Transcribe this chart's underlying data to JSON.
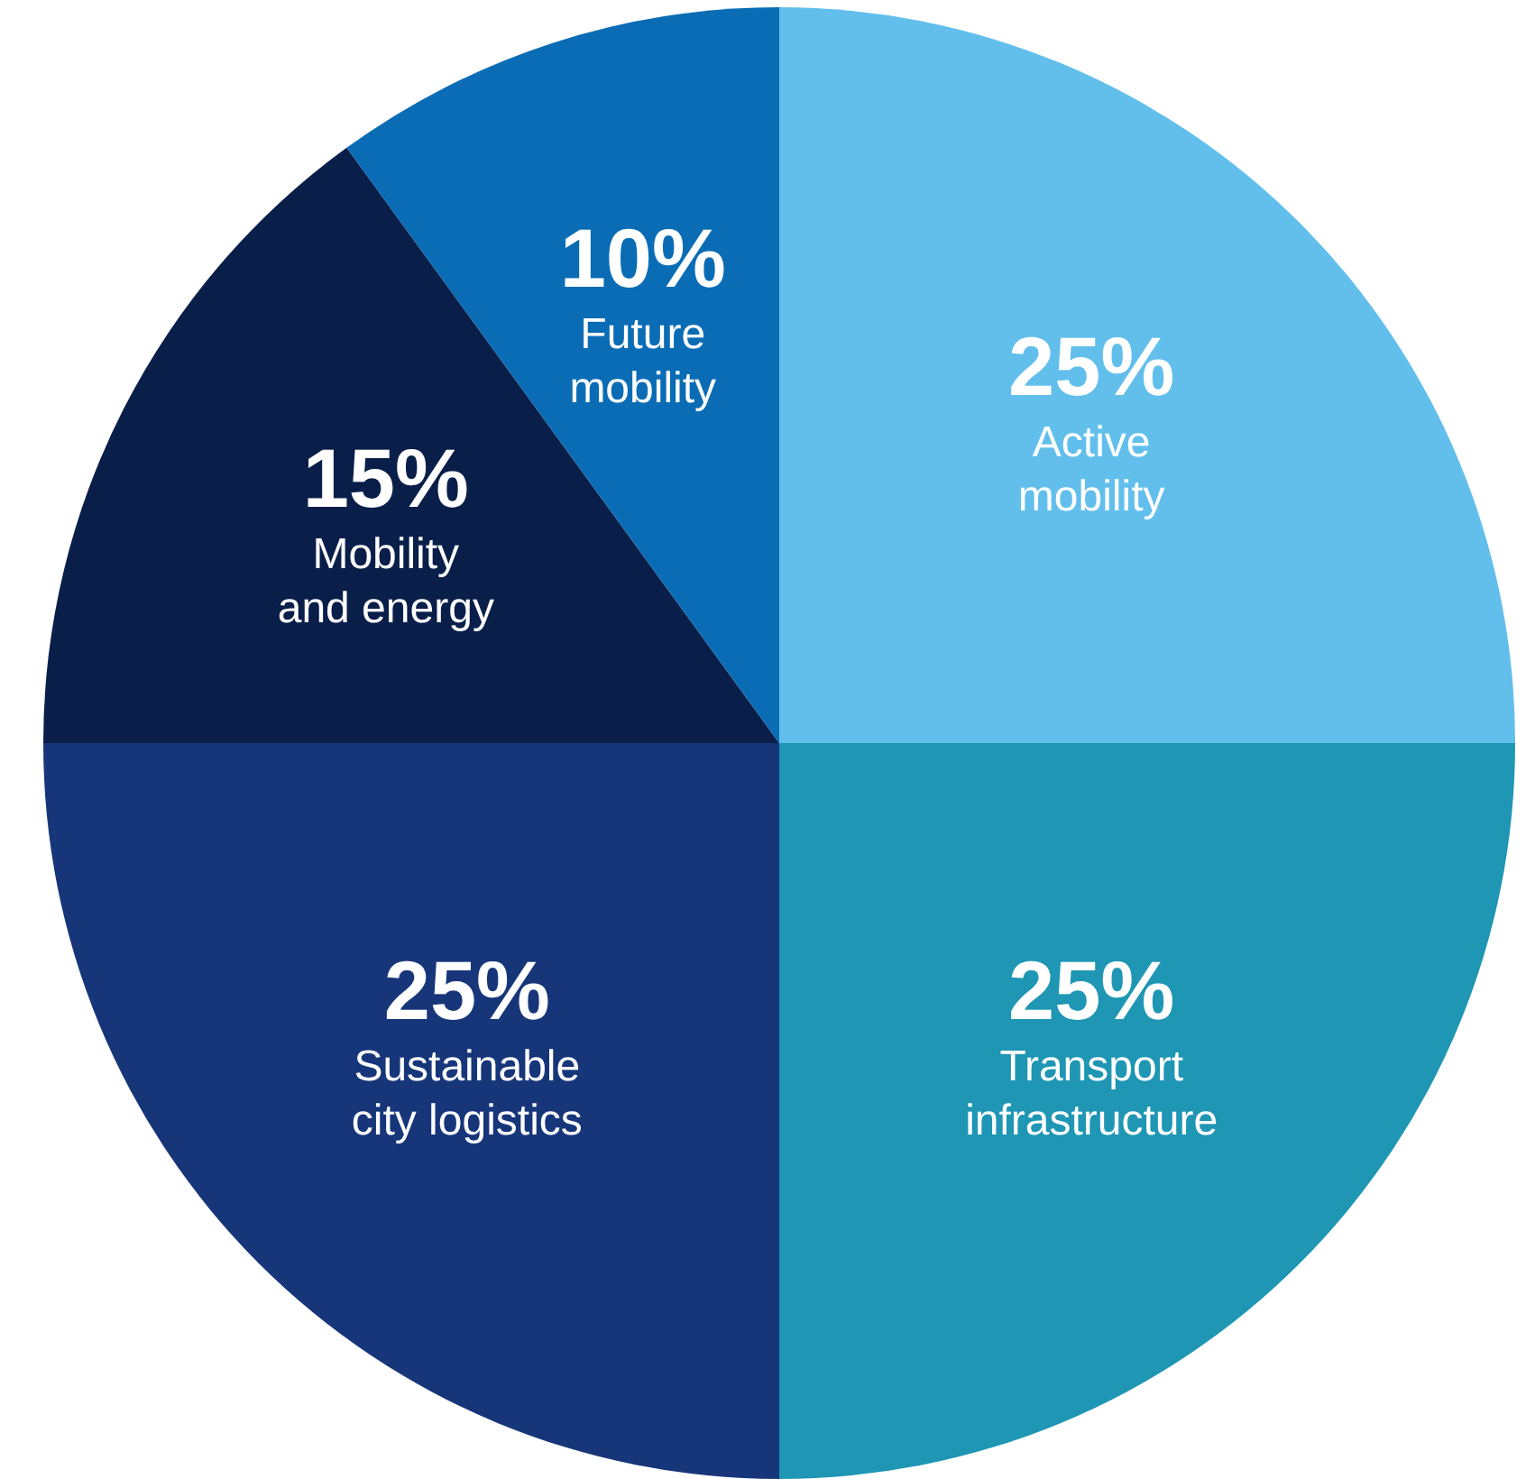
{
  "chart_data": {
    "type": "pie",
    "categories": [
      "Active mobility",
      "Transport infrastructure",
      "Sustainable city logistics",
      "Mobility and energy",
      "Future mobility"
    ],
    "values": [
      25,
      25,
      25,
      15,
      10
    ],
    "colors": [
      "#62bfec",
      "#1e96b4",
      "#17367a",
      "#0a1e4a",
      "#0a6cb4"
    ],
    "value_labels": [
      "25%",
      "25%",
      "25%",
      "15%",
      "10%"
    ]
  }
}
